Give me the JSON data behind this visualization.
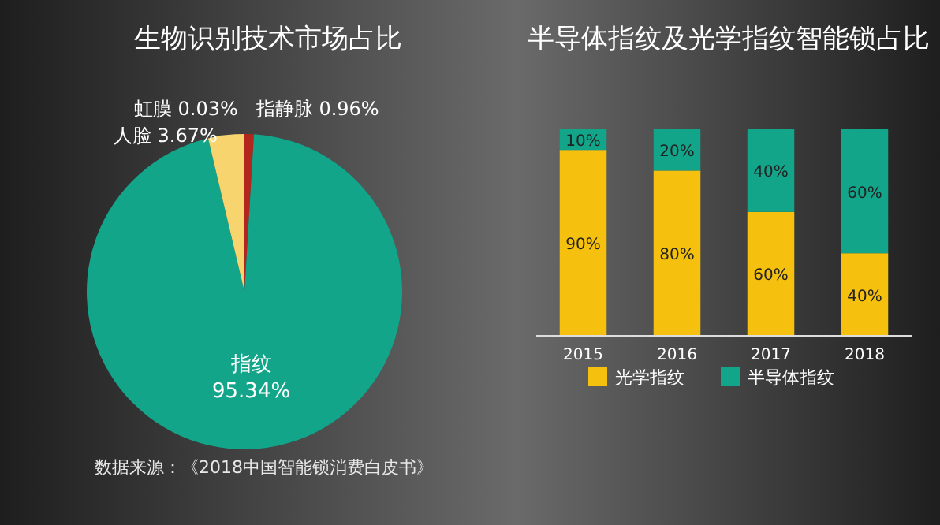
{
  "chart_data": [
    {
      "type": "pie",
      "title": "生物识别技术市场占比",
      "categories": [
        "指静脉",
        "指纹",
        "人脸",
        "虹膜"
      ],
      "values": [
        0.96,
        95.34,
        3.67,
        0.03
      ],
      "value_labels": [
        "0.96%",
        "95.34%",
        "3.67%",
        "0.03%"
      ],
      "colors": [
        "#b3261e",
        "#12a58a",
        "#f7d46e",
        "#f3e3a8"
      ],
      "annotations": [
        "数据来源：《2018中国智能锁消费白皮书》"
      ]
    },
    {
      "type": "bar",
      "title": "半导体指纹及光学指纹智能锁占比",
      "categories": [
        "2015",
        "2016",
        "2017",
        "2018"
      ],
      "stacked": true,
      "legend": "bottom",
      "series": [
        {
          "name": "光学指纹",
          "color": "#f5c10e",
          "values": [
            90,
            80,
            60,
            40
          ],
          "value_labels": [
            "90%",
            "80%",
            "60%",
            "40%"
          ]
        },
        {
          "name": "半导体指纹",
          "color": "#12a58a",
          "values": [
            10,
            20,
            40,
            60
          ],
          "value_labels": [
            "10%",
            "20%",
            "40%",
            "60%"
          ]
        }
      ]
    }
  ]
}
